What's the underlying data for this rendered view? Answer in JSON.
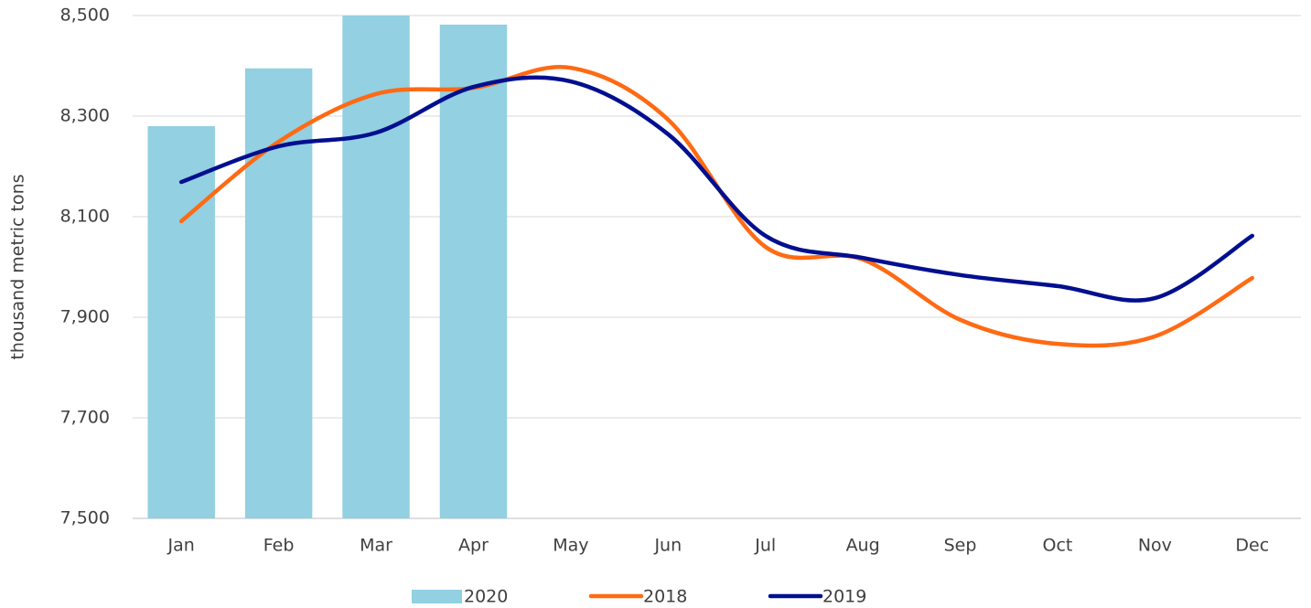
{
  "chart_data": {
    "type": "bar-line",
    "y_label": "thousand metric tons",
    "categories": [
      "Jan",
      "Feb",
      "Mar",
      "Apr",
      "May",
      "Jun",
      "Jul",
      "Aug",
      "Sep",
      "Oct",
      "Nov",
      "Dec"
    ],
    "ylim": [
      7500,
      8500
    ],
    "yticks": [
      {
        "value": 7500,
        "label": "7,500"
      },
      {
        "value": 7700,
        "label": "7,700"
      },
      {
        "value": 7900,
        "label": "7,900"
      },
      {
        "value": 8100,
        "label": "8,100"
      },
      {
        "value": 8300,
        "label": "8,300"
      },
      {
        "value": 8500,
        "label": "8,500"
      }
    ],
    "grid": true,
    "series": [
      {
        "name": "2020",
        "type": "bar",
        "color": "#92d0e2",
        "values": [
          8280,
          8395,
          8500,
          8482,
          null,
          null,
          null,
          null,
          null,
          null,
          null,
          null
        ]
      },
      {
        "name": "2018",
        "type": "line",
        "color": "#ff6a13",
        "values": [
          8091,
          8249,
          8344,
          8356,
          8396,
          8293,
          8040,
          8015,
          7895,
          7847,
          7862,
          7978
        ]
      },
      {
        "name": "2019",
        "type": "line",
        "color": "#000f8f",
        "values": [
          8169,
          8240,
          8267,
          8358,
          8369,
          8264,
          8062,
          8018,
          7984,
          7962,
          7938,
          8062
        ]
      }
    ]
  }
}
